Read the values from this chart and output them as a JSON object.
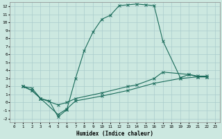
{
  "title": "",
  "xlabel": "Humidex (Indice chaleur)",
  "background_color": "#cce8e0",
  "grid_color": "#aacccc",
  "line_color": "#1a6b5a",
  "xlim": [
    -0.5,
    23.5
  ],
  "ylim": [
    -2.5,
    12.5
  ],
  "xticks": [
    0,
    1,
    2,
    3,
    4,
    5,
    6,
    7,
    8,
    9,
    10,
    11,
    12,
    13,
    14,
    15,
    16,
    17,
    18,
    19,
    20,
    21,
    22,
    23
  ],
  "yticks": [
    -2,
    -1,
    0,
    1,
    2,
    3,
    4,
    5,
    6,
    7,
    8,
    9,
    10,
    11,
    12
  ],
  "curve1_x": [
    1,
    2,
    3,
    4,
    5,
    6,
    7,
    8,
    9,
    10,
    11,
    12,
    13,
    14,
    15,
    16,
    17,
    19,
    20,
    21,
    22
  ],
  "curve1_y": [
    2.0,
    1.5,
    0.5,
    0.2,
    -1.8,
    -0.9,
    3.0,
    6.5,
    8.8,
    10.4,
    10.9,
    12.1,
    12.2,
    12.3,
    12.2,
    12.1,
    7.7,
    3.1,
    3.5,
    3.2,
    3.2
  ],
  "curve2_x": [
    1,
    2,
    3,
    5,
    6,
    7,
    10,
    13,
    14,
    16,
    17,
    20,
    21,
    22
  ],
  "curve2_y": [
    2.0,
    1.8,
    0.5,
    -0.3,
    0.0,
    0.5,
    1.2,
    2.0,
    2.2,
    3.0,
    3.8,
    3.5,
    3.3,
    3.3
  ],
  "curve3_x": [
    1,
    2,
    3,
    5,
    6,
    7,
    10,
    13,
    16,
    19,
    21,
    22
  ],
  "curve3_y": [
    2.0,
    1.5,
    0.5,
    -1.5,
    -0.8,
    0.2,
    0.8,
    1.5,
    2.4,
    3.0,
    3.2,
    3.2
  ]
}
